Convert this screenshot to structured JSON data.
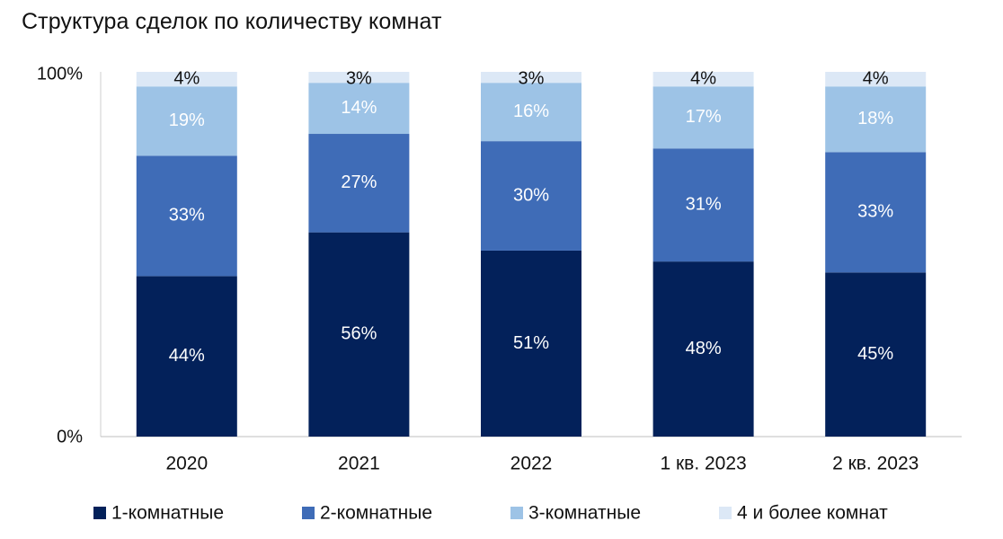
{
  "chart_data": {
    "type": "bar",
    "stacked": true,
    "title": "Структура сделок по количеству комнат",
    "categories": [
      "2020",
      "2021",
      "2022",
      "1 кв. 2023",
      "2 кв. 2023"
    ],
    "series": [
      {
        "name": "1-комнатные",
        "values": [
          44,
          56,
          51,
          48,
          45
        ],
        "color": "#03215A"
      },
      {
        "name": "2-комнатные",
        "values": [
          33,
          27,
          30,
          31,
          33
        ],
        "color": "#3F6CB7"
      },
      {
        "name": "3-комнатные",
        "values": [
          19,
          14,
          16,
          17,
          18
        ],
        "color": "#9DC3E6"
      },
      {
        "name": "4 и более комнат",
        "values": [
          4,
          3,
          3,
          4,
          4
        ],
        "color": "#DCE8F6"
      }
    ],
    "value_suffix": "%",
    "label_colors": [
      "#ffffff",
      "#ffffff",
      "#ffffff",
      "#111111"
    ],
    "yticks": [
      "0%",
      "100%"
    ],
    "ylim": [
      0,
      100
    ],
    "legend_position": "bottom"
  }
}
